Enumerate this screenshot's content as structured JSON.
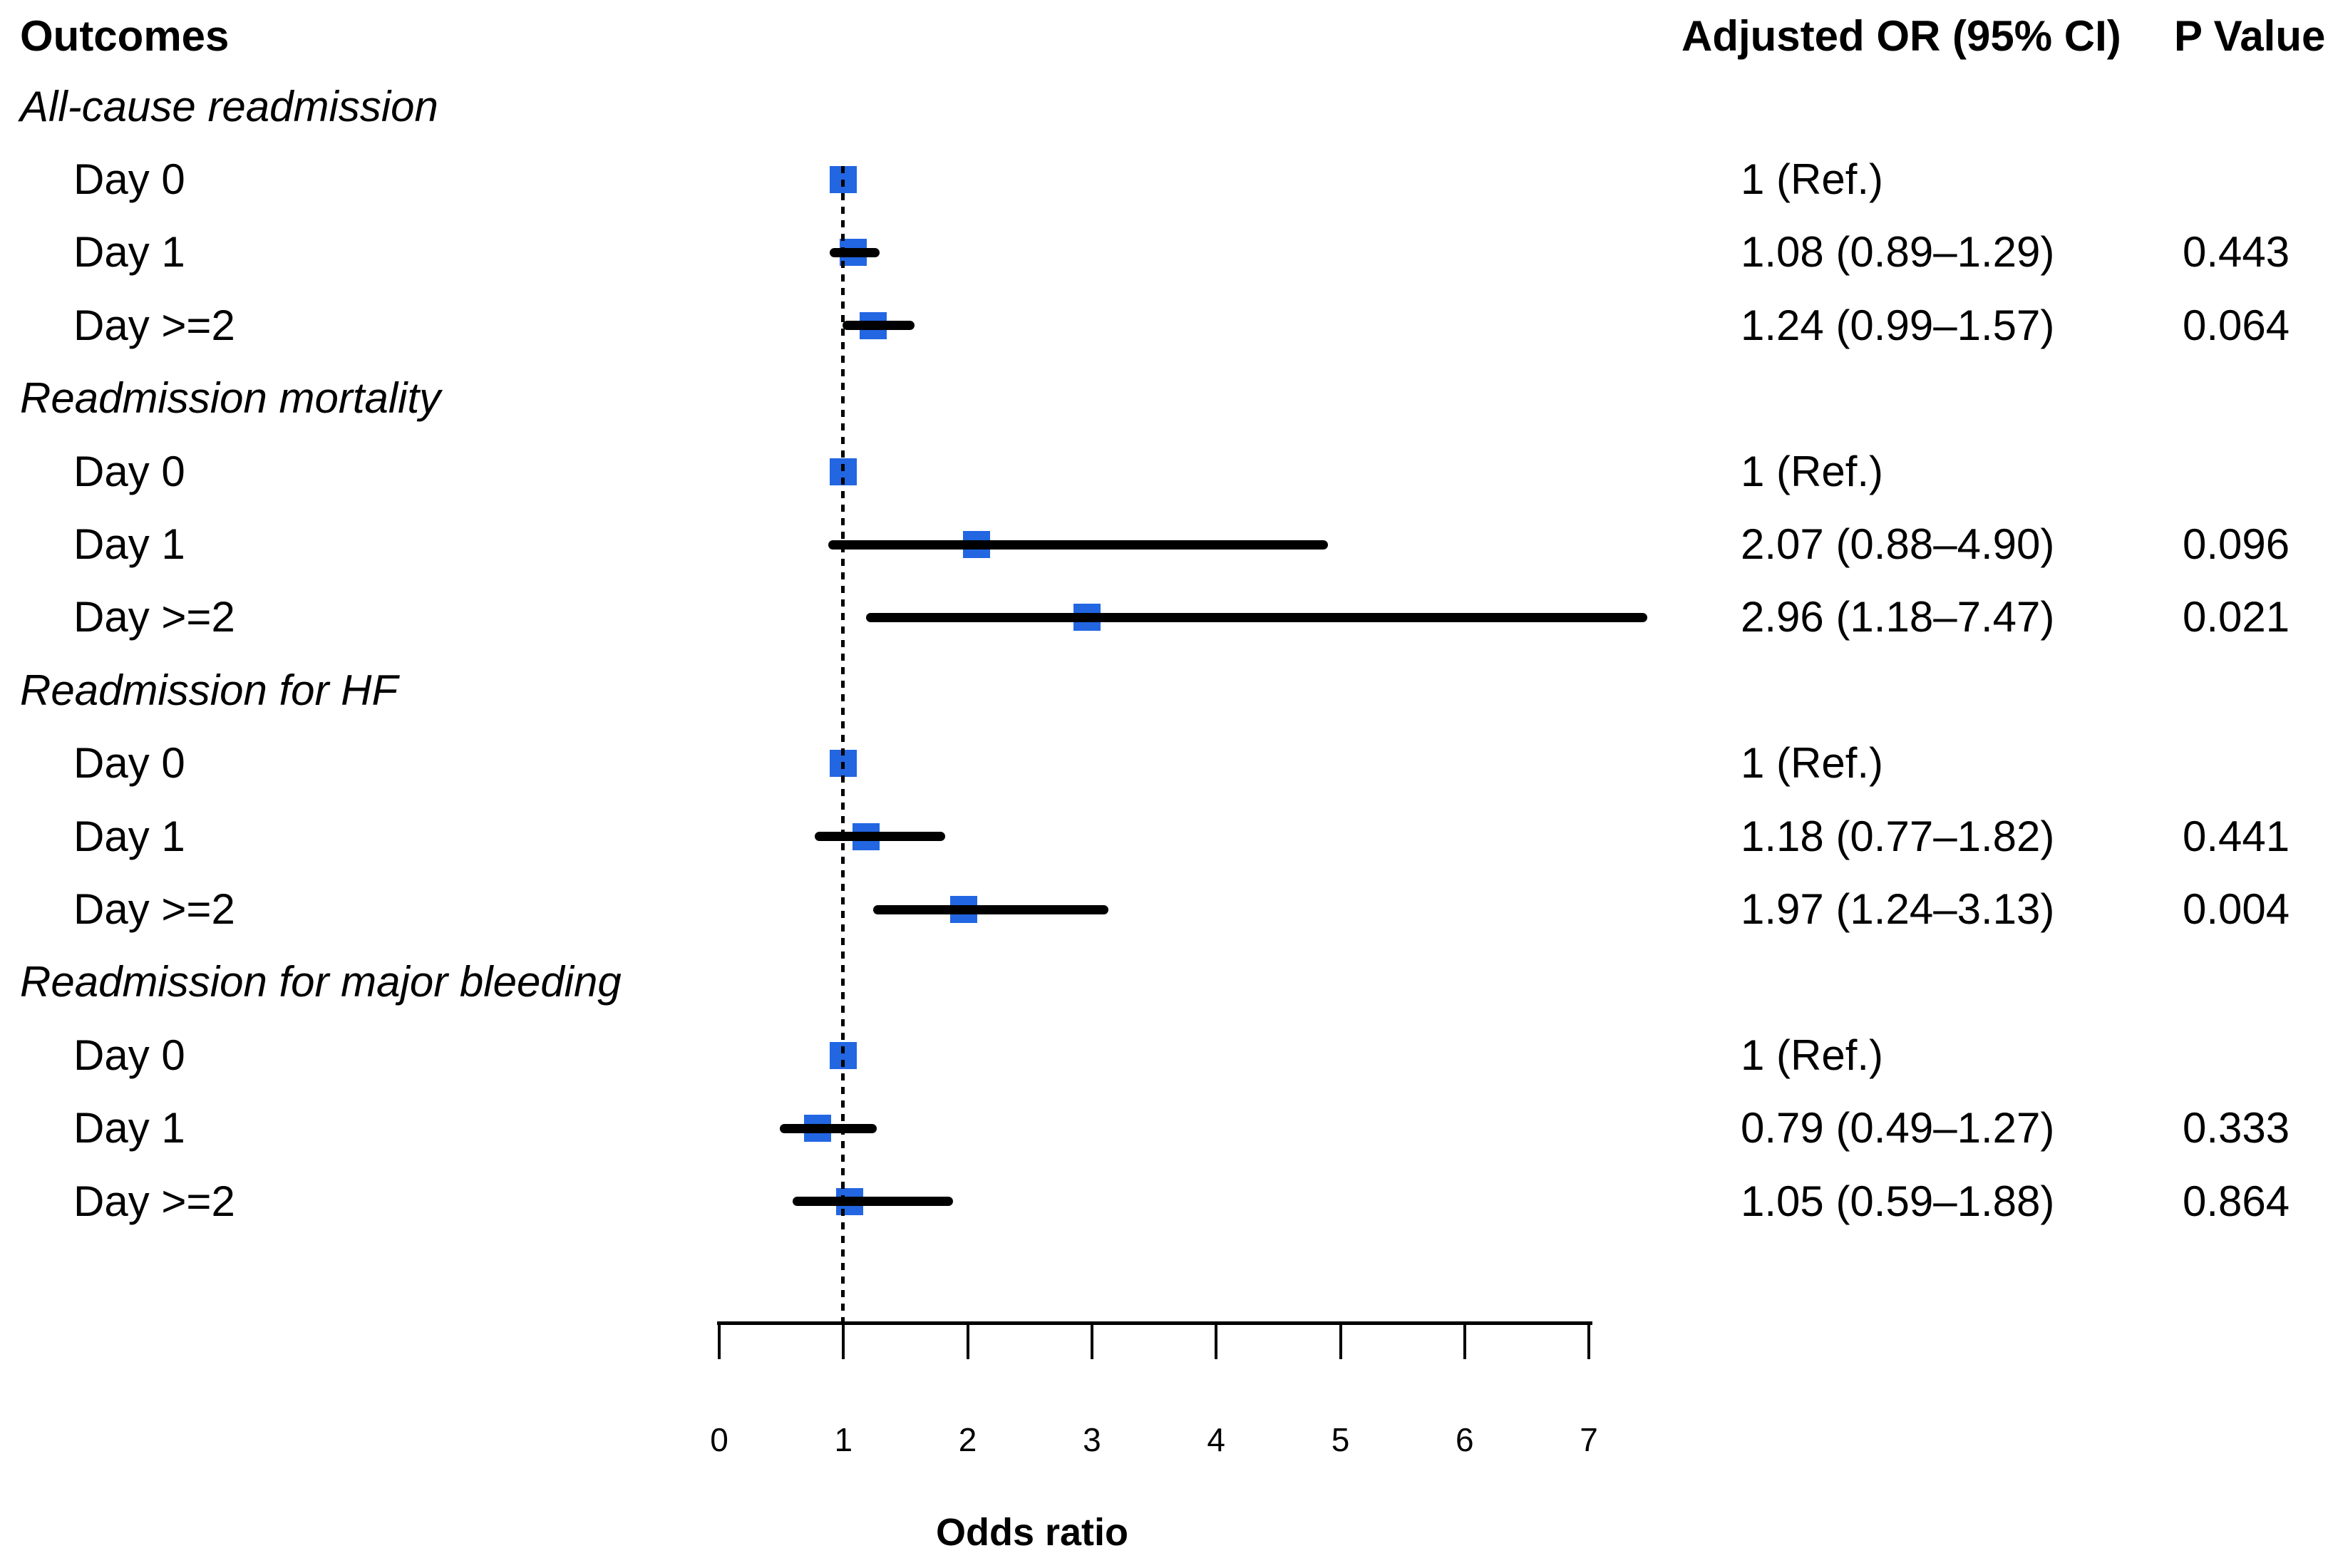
{
  "chart_data": {
    "type": "forest",
    "marker": "square",
    "columns": [
      "Outcomes",
      "Adjusted OR (95% CI)",
      "P Value"
    ],
    "xlabel": "Odds ratio",
    "xlim": [
      0,
      7
    ],
    "xticks": [
      0,
      1,
      2,
      3,
      4,
      5,
      6,
      7
    ],
    "ref_line": 1,
    "grid": false,
    "colors": {
      "marker": "#2266E2",
      "ci_line": "#000000",
      "text": "#000000"
    },
    "groups": [
      {
        "label": "All-cause readmission",
        "rows": [
          {
            "label": "Day 0",
            "or": 1,
            "low": null,
            "high": null,
            "or_text": "1 (Ref.)",
            "p_text": ""
          },
          {
            "label": "Day 1",
            "or": 1.08,
            "low": 0.89,
            "high": 1.29,
            "or_text": "1.08 (0.89–1.29)",
            "p_text": "0.443"
          },
          {
            "label": "Day >=2",
            "or": 1.24,
            "low": 0.99,
            "high": 1.57,
            "or_text": "1.24 (0.99–1.57)",
            "p_text": "0.064"
          }
        ]
      },
      {
        "label": "Readmission mortality",
        "rows": [
          {
            "label": "Day 0",
            "or": 1,
            "low": null,
            "high": null,
            "or_text": "1 (Ref.)",
            "p_text": ""
          },
          {
            "label": "Day 1",
            "or": 2.07,
            "low": 0.88,
            "high": 4.9,
            "or_text": "2.07 (0.88–4.90)",
            "p_text": "0.096"
          },
          {
            "label": "Day >=2",
            "or": 2.96,
            "low": 1.18,
            "high": 7.47,
            "or_text": "2.96 (1.18–7.47)",
            "p_text": "0.021"
          }
        ]
      },
      {
        "label": "Readmission for HF",
        "rows": [
          {
            "label": "Day 0",
            "or": 1,
            "low": null,
            "high": null,
            "or_text": "1 (Ref.)",
            "p_text": ""
          },
          {
            "label": "Day 1",
            "or": 1.18,
            "low": 0.77,
            "high": 1.82,
            "or_text": "1.18 (0.77–1.82)",
            "p_text": "0.441"
          },
          {
            "label": "Day >=2",
            "or": 1.97,
            "low": 1.24,
            "high": 3.13,
            "or_text": "1.97 (1.24–3.13)",
            "p_text": "0.004"
          }
        ]
      },
      {
        "label": "Readmission for major bleeding",
        "rows": [
          {
            "label": "Day 0",
            "or": 1,
            "low": null,
            "high": null,
            "or_text": "1 (Ref.)",
            "p_text": ""
          },
          {
            "label": "Day 1",
            "or": 0.79,
            "low": 0.49,
            "high": 1.27,
            "or_text": "0.79 (0.49–1.27)",
            "p_text": "0.333"
          },
          {
            "label": "Day >=2",
            "or": 1.05,
            "low": 0.59,
            "high": 1.88,
            "or_text": "1.05 (0.59–1.88)",
            "p_text": "0.864"
          }
        ]
      }
    ]
  }
}
